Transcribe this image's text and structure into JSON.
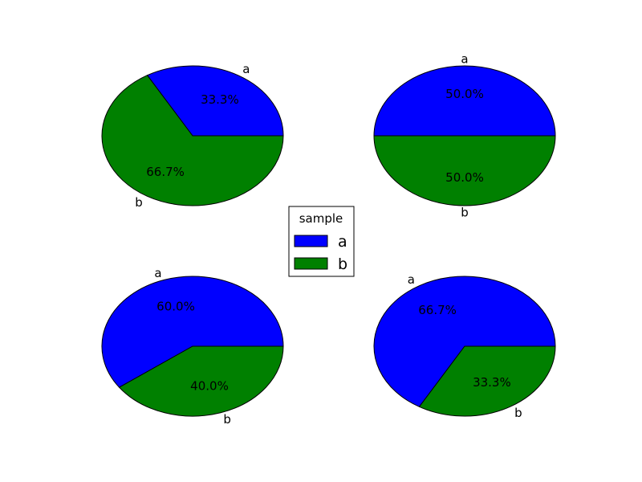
{
  "colors": {
    "a": "#0000ff",
    "b": "#008000",
    "edge": "#000000"
  },
  "legend": {
    "title": "sample",
    "entries": [
      {
        "label": "a",
        "color": "#0000ff"
      },
      {
        "label": "b",
        "color": "#008000"
      }
    ]
  },
  "chart_data": [
    {
      "type": "pie",
      "position": "top-left",
      "labels": [
        "a",
        "b"
      ],
      "values": [
        1,
        2
      ],
      "percents": [
        "33.3%",
        "66.7%"
      ],
      "colors": [
        "#0000ff",
        "#008000"
      ]
    },
    {
      "type": "pie",
      "position": "top-right",
      "labels": [
        "a",
        "b"
      ],
      "values": [
        1,
        1
      ],
      "percents": [
        "50.0%",
        "50.0%"
      ],
      "colors": [
        "#0000ff",
        "#008000"
      ]
    },
    {
      "type": "pie",
      "position": "bottom-left",
      "labels": [
        "a",
        "b"
      ],
      "values": [
        3,
        2
      ],
      "percents": [
        "60.0%",
        "40.0%"
      ],
      "colors": [
        "#0000ff",
        "#008000"
      ]
    },
    {
      "type": "pie",
      "position": "bottom-right",
      "labels": [
        "a",
        "b"
      ],
      "values": [
        2,
        1
      ],
      "percents": [
        "66.7%",
        "33.3%"
      ],
      "colors": [
        "#0000ff",
        "#008000"
      ]
    }
  ]
}
